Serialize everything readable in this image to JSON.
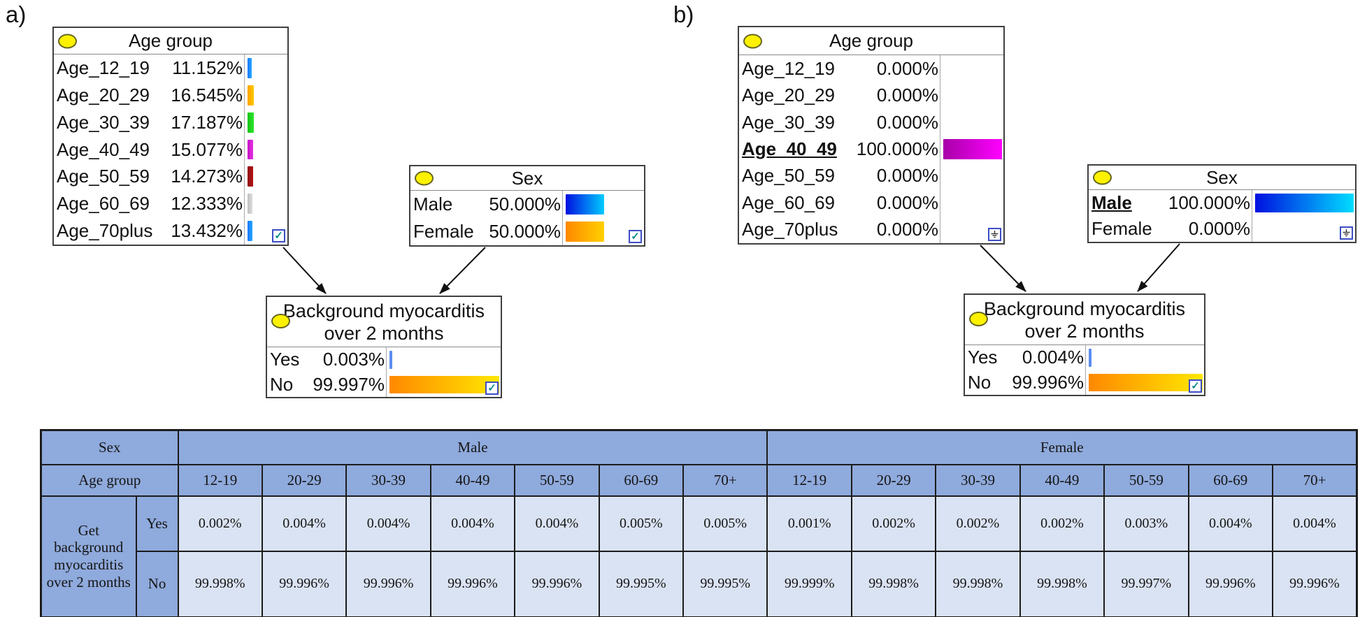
{
  "figure": {
    "panel_a_label": "a)",
    "panel_b_label": "b)"
  },
  "colors": {
    "table_header_bg": "#8FAADC",
    "table_cell_bg": "#DAE3F3",
    "node_ellipse": "#FFF200",
    "arrow": "#111111"
  },
  "panels": {
    "a": {
      "label": "a)",
      "age_group": {
        "title": "Age group",
        "corner_icon": "checkbox",
        "rows": [
          {
            "name": "Age_12_19",
            "value": "11.152%",
            "pct": 11.152,
            "c1": "#1877FF",
            "c2": "#27A7FF",
            "evidence": false
          },
          {
            "name": "Age_20_29",
            "value": "16.545%",
            "pct": 16.545,
            "c1": "#FFA300",
            "c2": "#FFC800",
            "evidence": false
          },
          {
            "name": "Age_30_39",
            "value": "17.187%",
            "pct": 17.187,
            "c1": "#17C417",
            "c2": "#2BE52B",
            "evidence": false
          },
          {
            "name": "Age_40_49",
            "value": "15.077%",
            "pct": 15.077,
            "c1": "#C513C5",
            "c2": "#E431E4",
            "evidence": false
          },
          {
            "name": "Age_50_59",
            "value": "14.273%",
            "pct": 14.273,
            "c1": "#8F0F0F",
            "c2": "#B31414",
            "evidence": false
          },
          {
            "name": "Age_60_69",
            "value": "12.333%",
            "pct": 12.333,
            "c1": "#BFBFBF",
            "c2": "#DCDCDC",
            "evidence": false
          },
          {
            "name": "Age_70plus",
            "value": "13.432%",
            "pct": 13.432,
            "c1": "#1877FF",
            "c2": "#27A7FF",
            "evidence": false
          }
        ]
      },
      "sex": {
        "title": "Sex",
        "corner_icon": "checkbox",
        "rows": [
          {
            "name": "Male",
            "value": "50.000%",
            "pct": 50,
            "c1": "#0010E0",
            "c2": "#00CCFF",
            "evidence": false
          },
          {
            "name": "Female",
            "value": "50.000%",
            "pct": 50,
            "c1": "#FF8800",
            "c2": "#FFD000",
            "evidence": false
          }
        ]
      },
      "myocarditis": {
        "title_line1": "Background myocarditis",
        "title_line2": "over 2 months",
        "corner_icon": "checkbox",
        "rows": [
          {
            "name": "Yes",
            "value": "0.003%",
            "pct": 0.003,
            "c1": "#5B8DEE",
            "c2": "#5B8DEE",
            "evidence": false
          },
          {
            "name": "No",
            "value": "99.997%",
            "pct": 99.997,
            "c1": "#FF8800",
            "c2": "#FFE800",
            "evidence": false
          }
        ]
      }
    },
    "b": {
      "label": "b)",
      "age_group": {
        "title": "Age group",
        "corner_icon": "ground",
        "rows": [
          {
            "name": "Age_12_19",
            "value": "0.000%",
            "pct": 0,
            "c1": "#1877FF",
            "c2": "#27A7FF",
            "evidence": false
          },
          {
            "name": "Age_20_29",
            "value": "0.000%",
            "pct": 0,
            "c1": "#FFA300",
            "c2": "#FFC800",
            "evidence": false
          },
          {
            "name": "Age_30_39",
            "value": "0.000%",
            "pct": 0,
            "c1": "#17C417",
            "c2": "#2BE52B",
            "evidence": false
          },
          {
            "name": "Age_40_49",
            "value": "100.000%",
            "pct": 100,
            "c1": "#A800A8",
            "c2": "#FF00FF",
            "evidence": true
          },
          {
            "name": "Age_50_59",
            "value": "0.000%",
            "pct": 0,
            "c1": "#8F0F0F",
            "c2": "#B31414",
            "evidence": false
          },
          {
            "name": "Age_60_69",
            "value": "0.000%",
            "pct": 0,
            "c1": "#BFBFBF",
            "c2": "#DCDCDC",
            "evidence": false
          },
          {
            "name": "Age_70plus",
            "value": "0.000%",
            "pct": 0,
            "c1": "#1877FF",
            "c2": "#27A7FF",
            "evidence": false
          }
        ]
      },
      "sex": {
        "title": "Sex",
        "corner_icon": "ground",
        "rows": [
          {
            "name": "Male",
            "value": "100.000%",
            "pct": 100,
            "c1": "#0010E0",
            "c2": "#00DDFF",
            "evidence": true
          },
          {
            "name": "Female",
            "value": "0.000%",
            "pct": 0,
            "c1": "#FF8800",
            "c2": "#FFD000",
            "evidence": false
          }
        ]
      },
      "myocarditis": {
        "title_line1": "Background myocarditis",
        "title_line2": "over 2 months",
        "corner_icon": "checkbox",
        "rows": [
          {
            "name": "Yes",
            "value": "0.004%",
            "pct": 0.004,
            "c1": "#5B8DEE",
            "c2": "#5B8DEE",
            "evidence": false
          },
          {
            "name": "No",
            "value": "99.996%",
            "pct": 99.996,
            "c1": "#FF8800",
            "c2": "#FFE800",
            "evidence": false
          }
        ]
      }
    }
  },
  "table": {
    "sex_header": "Sex",
    "age_header": "Age group",
    "row_header": "Get background myocarditis over 2 months",
    "yes_label": "Yes",
    "no_label": "No",
    "groups": [
      "Male",
      "Female"
    ],
    "age_columns": [
      "12-19",
      "20-29",
      "30-39",
      "40-49",
      "50-59",
      "60-69",
      "70+"
    ],
    "male_yes": [
      "0.002%",
      "0.004%",
      "0.004%",
      "0.004%",
      "0.004%",
      "0.005%",
      "0.005%"
    ],
    "male_no": [
      "99.998%",
      "99.996%",
      "99.996%",
      "99.996%",
      "99.996%",
      "99.995%",
      "99.995%"
    ],
    "female_yes": [
      "0.001%",
      "0.002%",
      "0.002%",
      "0.002%",
      "0.003%",
      "0.004%",
      "0.004%"
    ],
    "female_no": [
      "99.999%",
      "99.998%",
      "99.998%",
      "99.998%",
      "99.997%",
      "99.996%",
      "99.996%"
    ]
  }
}
